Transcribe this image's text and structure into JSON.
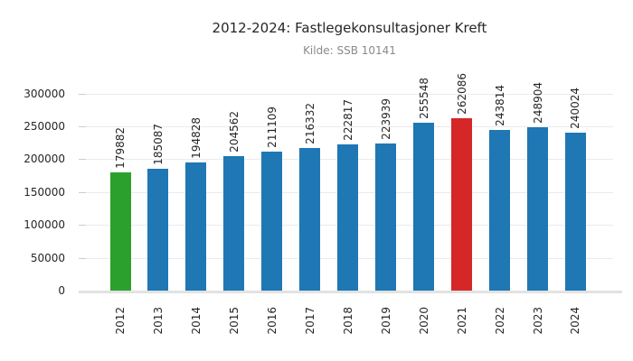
{
  "chart_data": {
    "type": "bar",
    "title": "2012-2024: Fastlegekonsultasjoner Kreft",
    "subtitle": "Kilde: SSB 10141",
    "xlabel": "",
    "ylabel": "",
    "categories": [
      "2012",
      "2013",
      "2014",
      "2015",
      "2016",
      "2017",
      "2018",
      "2019",
      "2020",
      "2021",
      "2022",
      "2023",
      "2024"
    ],
    "values": [
      179882,
      185087,
      194828,
      204562,
      211109,
      216332,
      222817,
      223939,
      255548,
      262086,
      243814,
      248904,
      240024
    ],
    "value_labels": [
      "179882",
      "185087",
      "194828",
      "204562",
      "211109",
      "216332",
      "222817",
      "223939",
      "255548",
      "262086",
      "243814",
      "248904",
      "240024"
    ],
    "bar_colors": [
      "#2ca02c",
      "#1f77b4",
      "#1f77b4",
      "#1f77b4",
      "#1f77b4",
      "#1f77b4",
      "#1f77b4",
      "#1f77b4",
      "#1f77b4",
      "#d62728",
      "#1f77b4",
      "#1f77b4",
      "#1f77b4"
    ],
    "default_bar_color": "#1f77b4",
    "highlights": [
      {
        "category": "2012",
        "color": "#2ca02c"
      },
      {
        "category": "2021",
        "color": "#d62728"
      }
    ],
    "ylim": [
      0,
      300000
    ],
    "yticks": [
      0,
      50000,
      100000,
      150000,
      200000,
      250000,
      300000
    ],
    "grid": true,
    "legend_position": "none",
    "tick_label_rotation": 90,
    "value_label_rotation": 90
  },
  "colors": {
    "background": "#ffffff",
    "title_text": "#262626",
    "subtitle_text": "#8a8a8a",
    "tick_text": "#262626",
    "gridline": "#ebebeb",
    "axis_line": "#e2e2e2",
    "bar_blue": "#1f77b4",
    "bar_green": "#2ca02c",
    "bar_red": "#d62728"
  }
}
